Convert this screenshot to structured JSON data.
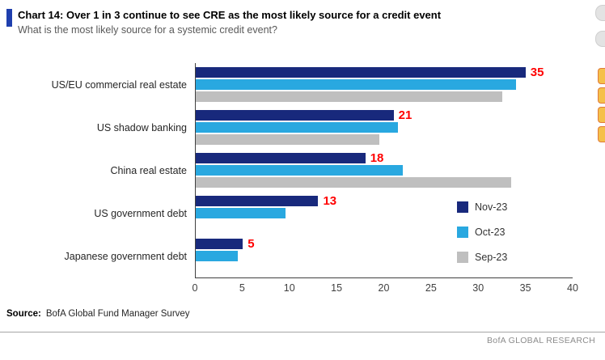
{
  "header": {
    "title": "Chart 14: Over 1 in 3 continue to see CRE as the most likely source for a credit event",
    "subtitle": "What is the most likely source for a systemic credit event?"
  },
  "chart_data": {
    "type": "bar",
    "orientation": "horizontal",
    "title": "Chart 14: Over 1 in 3 continue to see CRE as the most likely source for a credit event",
    "subtitle": "What is the most likely source for a systemic credit event?",
    "categories": [
      "US/EU commercial real estate",
      "US shadow banking",
      "China real estate",
      "US government debt",
      "Japanese government debt"
    ],
    "series": [
      {
        "name": "Nov-23",
        "color": "#18297C",
        "values": [
          35,
          21,
          18,
          13,
          5
        ]
      },
      {
        "name": "Oct-23",
        "color": "#29A8E0",
        "values": [
          34,
          21.5,
          22,
          9.5,
          4.5
        ]
      },
      {
        "name": "Sep-23",
        "color": "#BFBFBF",
        "values": [
          32.5,
          19.5,
          33.5,
          null,
          null
        ]
      }
    ],
    "value_labels": [
      "35",
      "21",
      "18",
      "13",
      "5"
    ],
    "value_label_color": "#FF0000",
    "xlim": [
      0,
      40
    ],
    "x_ticks": [
      0,
      5,
      10,
      15,
      20,
      25,
      30,
      35,
      40
    ],
    "grid": false,
    "legend_position": "inside-right"
  },
  "footer": {
    "source_label": "Source:",
    "source_text": "BofA Global Fund Manager Survey",
    "brand": "BofA GLOBAL RESEARCH"
  }
}
